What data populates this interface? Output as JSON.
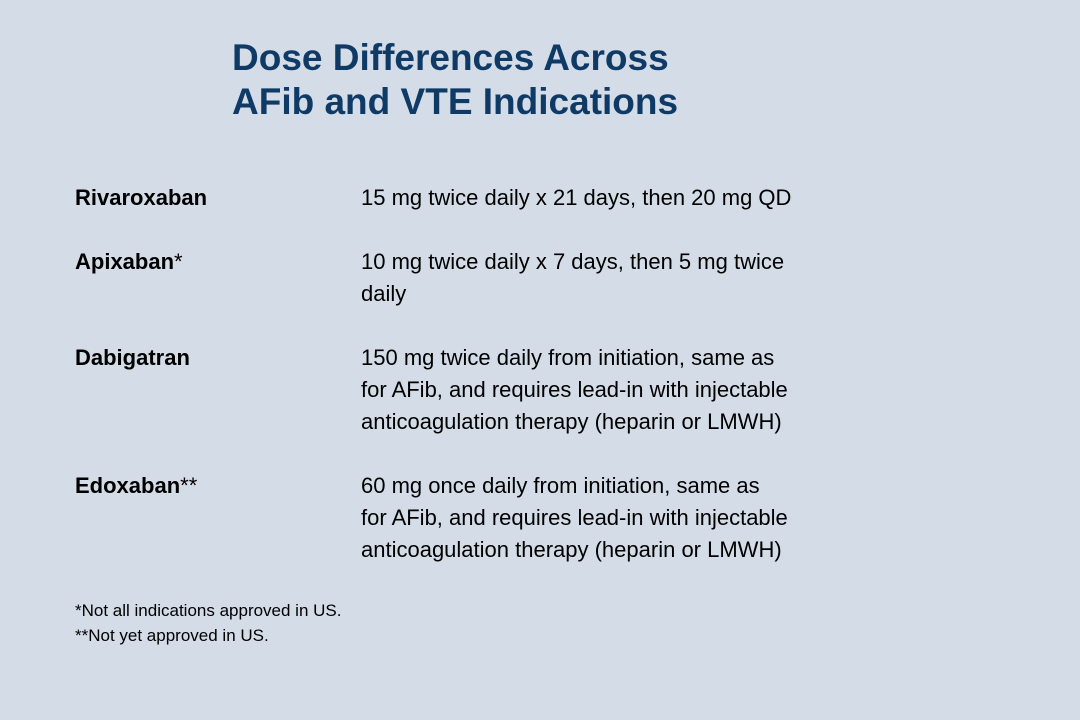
{
  "title": {
    "line1": "Dose Differences Across",
    "line2": "AFib and VTE Indications"
  },
  "colors": {
    "background": "#d3dce7",
    "title": "#0f3a66",
    "text": "#000000"
  },
  "drugs": [
    {
      "name": "Rivaroxaban",
      "mark": "",
      "dose_lines": [
        "15 mg twice daily x 21 days, then 20 mg QD"
      ]
    },
    {
      "name": "Apixaban",
      "mark": "*",
      "dose_lines": [
        "10 mg twice daily x 7 days, then 5 mg twice",
        "daily"
      ]
    },
    {
      "name": "Dabigatran",
      "mark": "",
      "dose_lines": [
        "150 mg twice daily from initiation, same as",
        "for AFib, and requires lead-in with injectable",
        "anticoagulation therapy (heparin or LMWH)"
      ]
    },
    {
      "name": "Edoxaban",
      "mark": "**",
      "dose_lines": [
        "60 mg once daily from initiation, same as",
        "for AFib, and requires lead-in with injectable",
        "anticoagulation therapy (heparin or LMWH)"
      ]
    }
  ],
  "footnotes": [
    "*Not all indications approved in US.",
    "**Not yet approved in US."
  ]
}
